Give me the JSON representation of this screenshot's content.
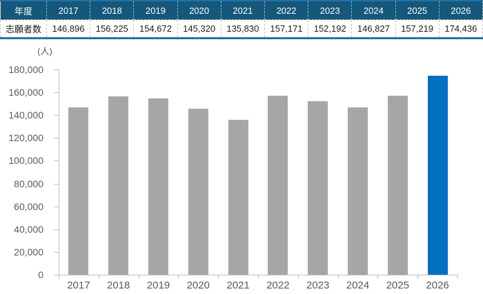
{
  "table": {
    "header_row": [
      "年度",
      "2017",
      "2018",
      "2019",
      "2020",
      "2021",
      "2022",
      "2023",
      "2024",
      "2025",
      "2026"
    ],
    "data_row": [
      "志願者数",
      "146,896",
      "156,225",
      "154,672",
      "145,320",
      "135,830",
      "157,171",
      "152,192",
      "146,827",
      "157,219",
      "174,436"
    ],
    "header_bg": "#15587B",
    "header_text": "#FFFFFF",
    "border_accent": "#2173A6"
  },
  "chart": {
    "unit_label": "(人)"
  },
  "chart_data": {
    "type": "bar",
    "title": "",
    "unit_label": "(人)",
    "categories": [
      "2017",
      "2018",
      "2019",
      "2020",
      "2021",
      "2022",
      "2023",
      "2024",
      "2025",
      "2026"
    ],
    "values": [
      146896,
      156225,
      154672,
      145320,
      135830,
      157171,
      152192,
      146827,
      157219,
      174436
    ],
    "xlabel": "",
    "ylabel": "",
    "ylim": [
      0,
      180000
    ],
    "ytick_step": 20000,
    "y_tick_labels": [
      "0",
      "20,000",
      "40,000",
      "60,000",
      "80,000",
      "100,000",
      "120,000",
      "140,000",
      "160,000",
      "180,000"
    ],
    "grid": false,
    "legend": "none",
    "bar_color_default": "#A6A6A6",
    "bar_color_highlight": "#0070C0",
    "highlight_category": "2026",
    "highlight_index": 9,
    "axis_color": "#BFBFBF",
    "label_color": "#595959"
  }
}
